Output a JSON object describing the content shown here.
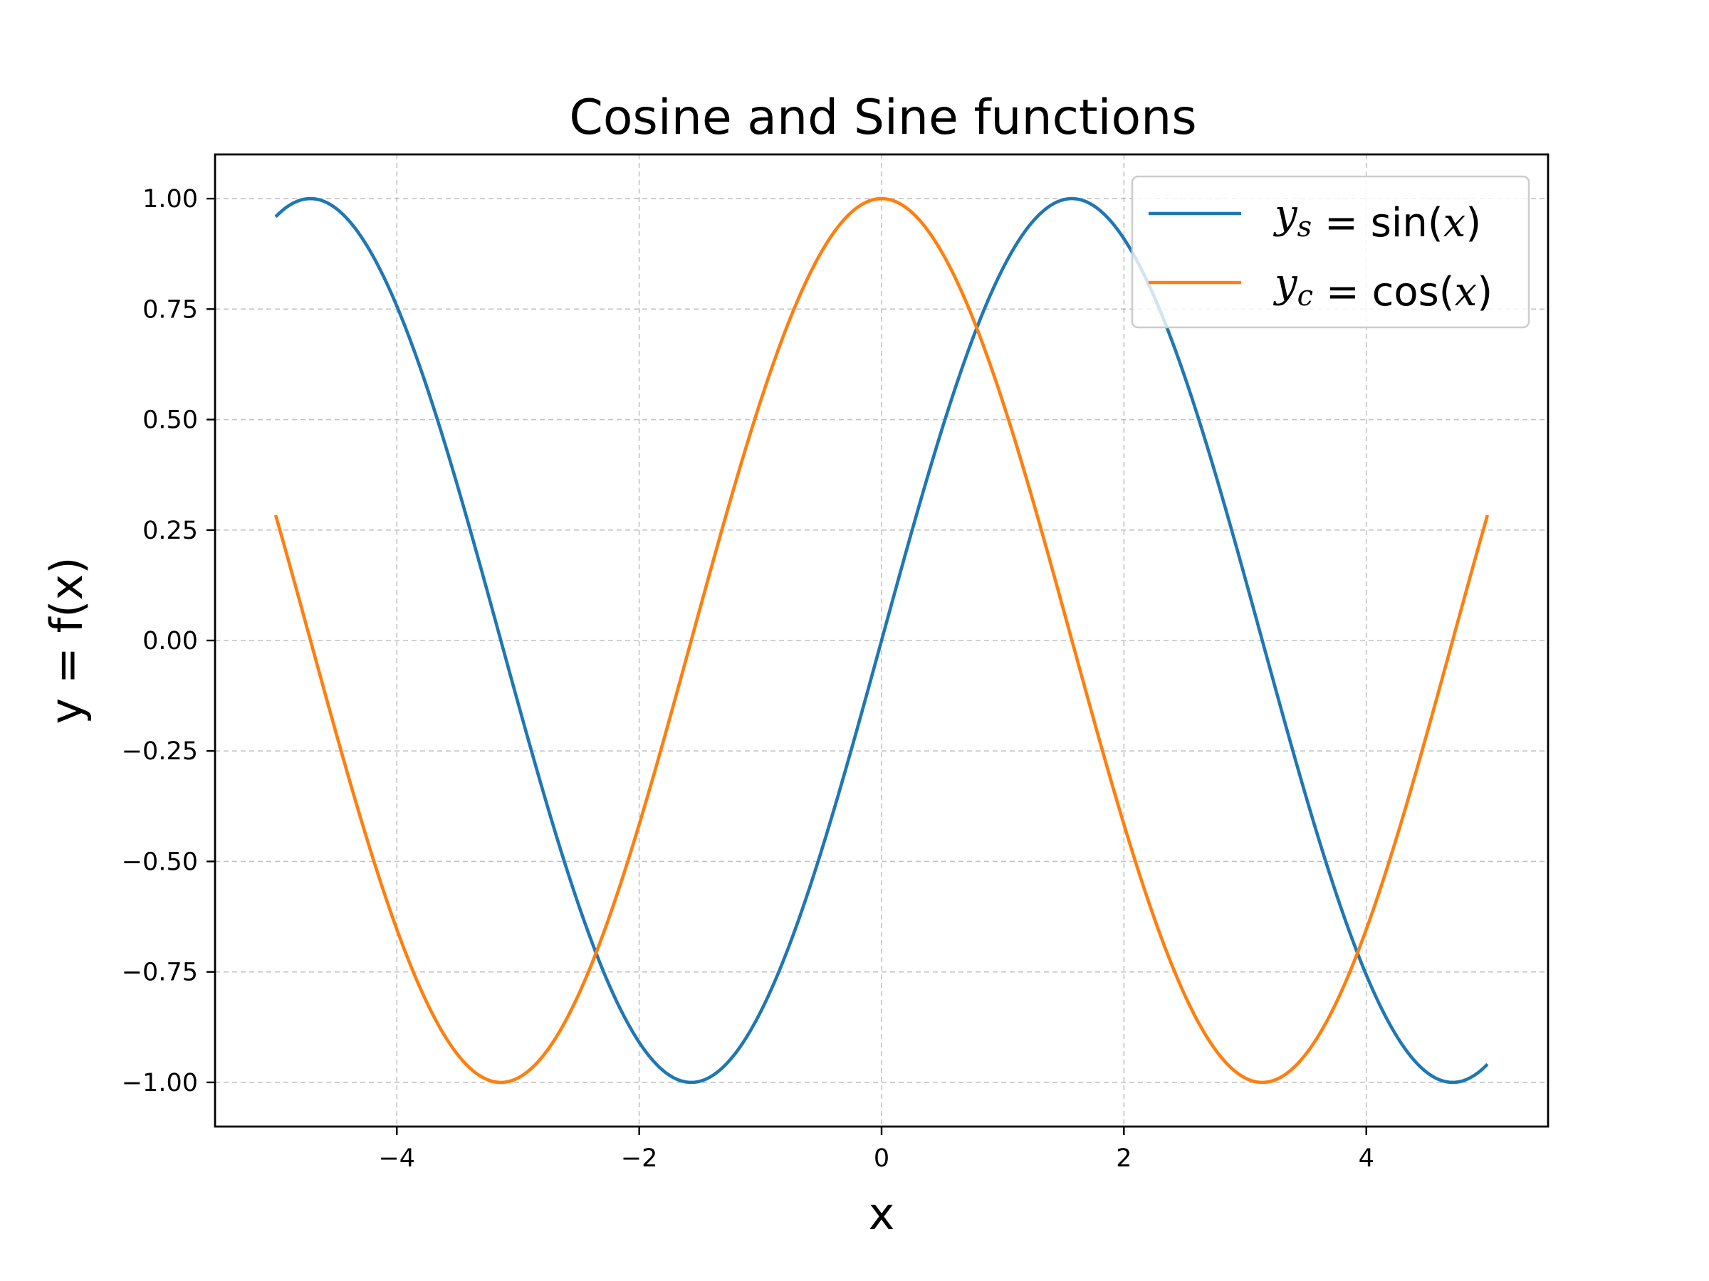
{
  "chart_data": {
    "type": "line",
    "title": "Cosine and Sine functions",
    "xlabel": "x",
    "ylabel": "y = f(x)",
    "xlim": [
      -5.5,
      5.5
    ],
    "ylim": [
      -1.1,
      1.1
    ],
    "x_range": [
      -5,
      5
    ],
    "grid": true,
    "legend_position": "top-right",
    "x_ticks": [
      {
        "value": -4,
        "label": "−4"
      },
      {
        "value": -2,
        "label": "−2"
      },
      {
        "value": 0,
        "label": "0"
      },
      {
        "value": 2,
        "label": "2"
      },
      {
        "value": 4,
        "label": "4"
      }
    ],
    "y_ticks": [
      {
        "value": 1.0,
        "label": "1.00"
      },
      {
        "value": 0.75,
        "label": "0.75"
      },
      {
        "value": 0.5,
        "label": "0.50"
      },
      {
        "value": 0.25,
        "label": "0.25"
      },
      {
        "value": 0.0,
        "label": "0.00"
      },
      {
        "value": -0.25,
        "label": "−0.25"
      },
      {
        "value": -0.5,
        "label": "−0.50"
      },
      {
        "value": -0.75,
        "label": "−0.75"
      },
      {
        "value": -1.0,
        "label": "−1.00"
      }
    ],
    "series": [
      {
        "name": "y_s = sin(x)",
        "function": "sin",
        "color": "#1f77b4",
        "legend": {
          "var": "y",
          "sub": "s",
          "eq": " = sin(",
          "arg": "x",
          "close": ")"
        }
      },
      {
        "name": "y_c = cos(x)",
        "function": "cos",
        "color": "#ff7f0e",
        "legend": {
          "var": "y",
          "sub": "c",
          "eq": " = cos(",
          "arg": "x",
          "close": ")"
        }
      }
    ]
  }
}
